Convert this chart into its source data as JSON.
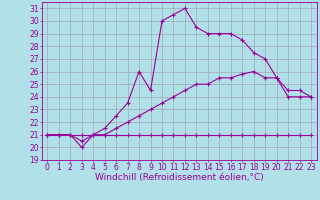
{
  "xlabel": "Windchill (Refroidissement éolien,°C)",
  "bg_color": "#b2e0e8",
  "line_color": "#990099",
  "grid_color": "#9999aa",
  "ylim": [
    19,
    31.5
  ],
  "xlim": [
    -0.5,
    23.5
  ],
  "yticks": [
    19,
    20,
    21,
    22,
    23,
    24,
    25,
    26,
    27,
    28,
    29,
    30,
    31
  ],
  "xticks": [
    0,
    1,
    2,
    3,
    4,
    5,
    6,
    7,
    8,
    9,
    10,
    11,
    12,
    13,
    14,
    15,
    16,
    17,
    18,
    19,
    20,
    21,
    22,
    23
  ],
  "line1_x": [
    0,
    1,
    2,
    3,
    4,
    5,
    6,
    7,
    8,
    9,
    10,
    11,
    12,
    13,
    14,
    15,
    16,
    17,
    18,
    19,
    20,
    21,
    22,
    23
  ],
  "line1_y": [
    21,
    21,
    21,
    21,
    21,
    21,
    21,
    21,
    21,
    21,
    21,
    21,
    21,
    21,
    21,
    21,
    21,
    21,
    21,
    21,
    21,
    21,
    21,
    21
  ],
  "line2_x": [
    0,
    1,
    2,
    3,
    4,
    5,
    6,
    7,
    8,
    9,
    10,
    11,
    12,
    13,
    14,
    15,
    16,
    17,
    18,
    19,
    20,
    21,
    22,
    23
  ],
  "line2_y": [
    21.0,
    21.0,
    21.0,
    20.5,
    21.0,
    21.0,
    21.5,
    22.0,
    22.5,
    23.0,
    23.5,
    24.0,
    24.5,
    25.0,
    25.0,
    25.5,
    25.5,
    25.8,
    26.0,
    25.5,
    25.5,
    24.5,
    24.5,
    24.0
  ],
  "line3_x": [
    0,
    1,
    2,
    3,
    4,
    5,
    6,
    7,
    8,
    9,
    10,
    11,
    12,
    13,
    14,
    15,
    16,
    17,
    18,
    19,
    20,
    21,
    22,
    23
  ],
  "line3_y": [
    21.0,
    21.0,
    21.0,
    20.0,
    21.0,
    21.5,
    22.5,
    23.5,
    26.0,
    24.5,
    30.0,
    30.5,
    31.0,
    29.5,
    29.0,
    29.0,
    29.0,
    28.5,
    27.5,
    27.0,
    25.5,
    24.0,
    24.0,
    24.0
  ],
  "marker": "+",
  "markersize": 3,
  "linewidth": 0.8,
  "fontsize_xlabel": 6.5,
  "fontsize_tick": 5.5
}
